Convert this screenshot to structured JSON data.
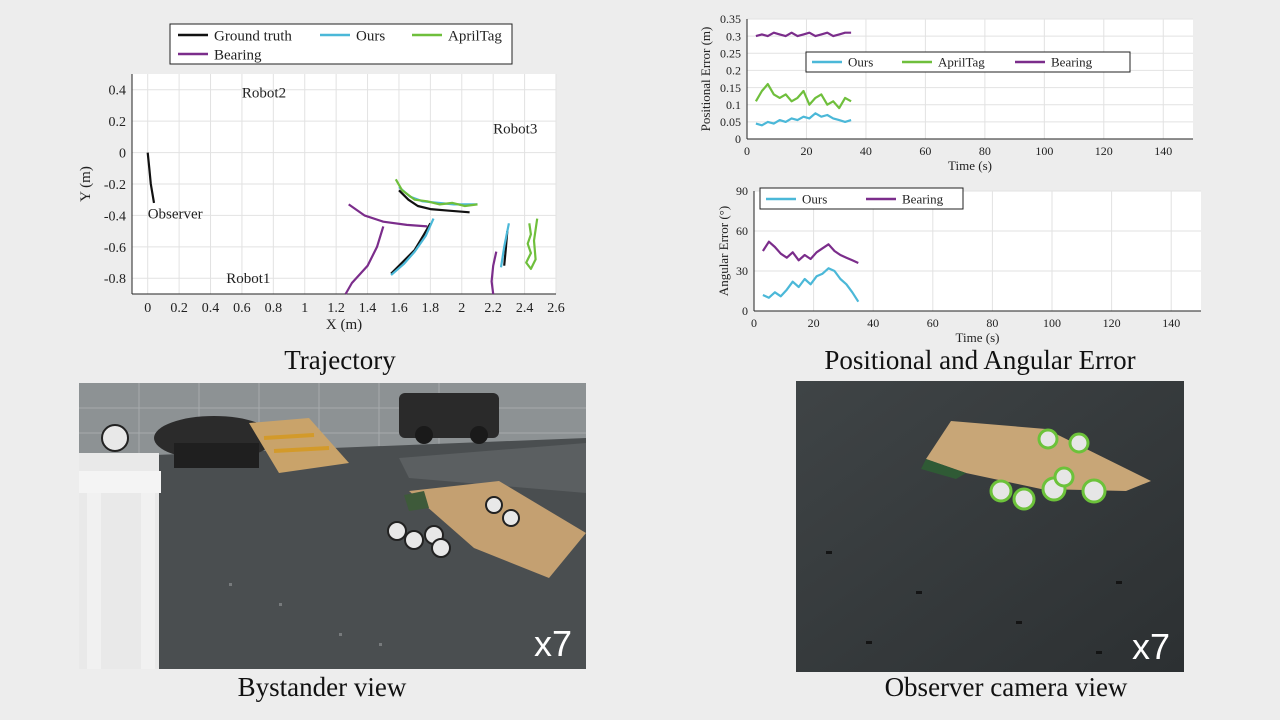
{
  "captions": {
    "trajectory": "Trajectory",
    "errors": "Positional and Angular Error",
    "bystander": "Bystander view",
    "observer": "Observer camera view"
  },
  "videos": {
    "bystander_speed": "x7",
    "observer_speed": "x7"
  },
  "colors": {
    "ground_truth": "#111111",
    "ours": "#4bb8d8",
    "apriltag": "#6fbf3c",
    "bearing": "#7b2d8b"
  },
  "chart_data": [
    {
      "type": "line",
      "xlabel": "X (m)",
      "ylabel": "Y (m)",
      "xlim": [
        -0.1,
        2.6
      ],
      "ylim": [
        -0.9,
        0.5
      ],
      "xticks": [
        0,
        0.2,
        0.4,
        0.6,
        0.8,
        1,
        1.2,
        1.4,
        1.6,
        1.8,
        2,
        2.2,
        2.4,
        2.6
      ],
      "xtick_labels": [
        "0",
        "0.2",
        "0.4",
        "0.6",
        "0.8",
        "1",
        "1.2",
        "1.4",
        "1.6",
        "1.8",
        "2",
        "2.2",
        "2.4",
        "2.6"
      ],
      "yticks": [
        0.4,
        0.2,
        0,
        -0.2,
        -0.4,
        -0.6,
        -0.8
      ],
      "ytick_labels": [
        "0.4",
        "0.2",
        "0",
        "-0.2",
        "-0.4",
        "-0.6",
        "-0.8"
      ],
      "grid": true,
      "legend": "top",
      "annotations": [
        {
          "text": "Robot2",
          "x": 0.6,
          "y": 0.35
        },
        {
          "text": "Robot3",
          "x": 2.2,
          "y": 0.12
        },
        {
          "text": "Observer",
          "x": 0.0,
          "y": -0.42
        },
        {
          "text": "Robot1",
          "x": 0.5,
          "y": -0.83
        }
      ],
      "series": [
        {
          "name": "Ground truth",
          "color_key": "ground_truth",
          "segments": [
            [
              [
                0.0,
                0.0
              ],
              [
                0.01,
                -0.1
              ],
              [
                0.02,
                -0.2
              ],
              [
                0.04,
                -0.32
              ]
            ],
            [
              [
                1.6,
                -0.24
              ],
              [
                1.66,
                -0.3
              ],
              [
                1.72,
                -0.34
              ],
              [
                1.8,
                -0.36
              ],
              [
                1.92,
                -0.37
              ],
              [
                2.05,
                -0.38
              ]
            ],
            [
              [
                1.55,
                -0.77
              ],
              [
                1.62,
                -0.7
              ],
              [
                1.7,
                -0.62
              ],
              [
                1.76,
                -0.52
              ],
              [
                1.8,
                -0.45
              ]
            ],
            [
              [
                2.27,
                -0.72
              ],
              [
                2.28,
                -0.62
              ],
              [
                2.29,
                -0.5
              ]
            ]
          ]
        },
        {
          "name": "Ours",
          "color_key": "ours",
          "segments": [
            [
              [
                1.6,
                -0.22
              ],
              [
                1.67,
                -0.28
              ],
              [
                1.75,
                -0.31
              ],
              [
                1.85,
                -0.32
              ],
              [
                1.95,
                -0.33
              ],
              [
                2.1,
                -0.33
              ]
            ],
            [
              [
                1.55,
                -0.78
              ],
              [
                1.63,
                -0.71
              ],
              [
                1.7,
                -0.63
              ],
              [
                1.77,
                -0.53
              ],
              [
                1.82,
                -0.42
              ]
            ],
            [
              [
                2.25,
                -0.73
              ],
              [
                2.27,
                -0.6
              ],
              [
                2.3,
                -0.45
              ]
            ]
          ]
        },
        {
          "name": "AprilTag",
          "color_key": "apriltag",
          "segments": [
            [
              [
                1.58,
                -0.17
              ],
              [
                1.62,
                -0.24
              ],
              [
                1.7,
                -0.3
              ],
              [
                1.78,
                -0.31
              ],
              [
                1.86,
                -0.33
              ],
              [
                1.94,
                -0.32
              ],
              [
                2.02,
                -0.34
              ],
              [
                2.1,
                -0.33
              ]
            ],
            [
              [
                2.43,
                -0.45
              ],
              [
                2.44,
                -0.52
              ],
              [
                2.42,
                -0.58
              ],
              [
                2.44,
                -0.64
              ],
              [
                2.41,
                -0.7
              ],
              [
                2.44,
                -0.74
              ],
              [
                2.47,
                -0.68
              ],
              [
                2.46,
                -0.56
              ],
              [
                2.48,
                -0.42
              ]
            ]
          ]
        },
        {
          "name": "Bearing",
          "color_key": "bearing",
          "segments": [
            [
              [
                1.28,
                -0.33
              ],
              [
                1.38,
                -0.4
              ],
              [
                1.5,
                -0.44
              ],
              [
                1.65,
                -0.46
              ],
              [
                1.78,
                -0.47
              ]
            ],
            [
              [
                1.5,
                -0.47
              ],
              [
                1.46,
                -0.6
              ],
              [
                1.4,
                -0.72
              ],
              [
                1.3,
                -0.83
              ],
              [
                1.26,
                -0.9
              ]
            ],
            [
              [
                2.22,
                -0.63
              ],
              [
                2.2,
                -0.72
              ],
              [
                2.19,
                -0.82
              ],
              [
                2.2,
                -0.9
              ]
            ]
          ]
        }
      ]
    },
    {
      "type": "line",
      "xlabel": "Time (s)",
      "ylabel": "Positional Error (m)",
      "xlim": [
        0,
        150
      ],
      "ylim": [
        0,
        0.35
      ],
      "xticks": [
        0,
        20,
        40,
        60,
        80,
        100,
        120,
        140
      ],
      "xtick_labels": [
        "0",
        "20",
        "40",
        "60",
        "80",
        "100",
        "120",
        "140"
      ],
      "yticks": [
        0,
        0.05,
        0.1,
        0.15,
        0.2,
        0.25,
        0.3,
        0.35
      ],
      "ytick_labels": [
        "0",
        "0.05",
        "0.1",
        "0.15",
        "0.2",
        "0.25",
        "0.3",
        "0.35"
      ],
      "grid": true,
      "legend": "top-center",
      "x": [
        3,
        5,
        7,
        9,
        11,
        13,
        15,
        17,
        19,
        21,
        23,
        25,
        27,
        29,
        31,
        33,
        35
      ],
      "series": [
        {
          "name": "Ours",
          "color_key": "ours",
          "values": [
            0.045,
            0.04,
            0.05,
            0.045,
            0.055,
            0.05,
            0.06,
            0.055,
            0.065,
            0.06,
            0.075,
            0.065,
            0.07,
            0.06,
            0.055,
            0.05,
            0.055
          ]
        },
        {
          "name": "AprilTag",
          "color_key": "apriltag",
          "values": [
            0.11,
            0.14,
            0.16,
            0.13,
            0.12,
            0.13,
            0.11,
            0.12,
            0.14,
            0.1,
            0.12,
            0.13,
            0.1,
            0.11,
            0.09,
            0.12,
            0.11
          ]
        },
        {
          "name": "Bearing",
          "color_key": "bearing",
          "values": [
            0.3,
            0.305,
            0.3,
            0.31,
            0.305,
            0.3,
            0.31,
            0.3,
            0.305,
            0.31,
            0.3,
            0.305,
            0.31,
            0.3,
            0.305,
            0.31,
            0.31
          ]
        }
      ]
    },
    {
      "type": "line",
      "xlabel": "Time (s)",
      "ylabel": "Angular Error (°)",
      "xlim": [
        0,
        150
      ],
      "ylim": [
        0,
        90
      ],
      "xticks": [
        0,
        20,
        40,
        60,
        80,
        100,
        120,
        140
      ],
      "xtick_labels": [
        "0",
        "20",
        "40",
        "60",
        "80",
        "100",
        "120",
        "140"
      ],
      "yticks": [
        0,
        30,
        60,
        90
      ],
      "ytick_labels": [
        "0",
        "30",
        "60",
        "90"
      ],
      "grid": true,
      "legend": "top-left",
      "x": [
        3,
        5,
        7,
        9,
        11,
        13,
        15,
        17,
        19,
        21,
        23,
        25,
        27,
        29,
        31,
        33,
        35
      ],
      "series": [
        {
          "name": "Ours",
          "color_key": "ours",
          "values": [
            12,
            10,
            14,
            11,
            16,
            22,
            18,
            24,
            20,
            26,
            28,
            32,
            30,
            24,
            20,
            14,
            7
          ]
        },
        {
          "name": "Bearing",
          "color_key": "bearing",
          "values": [
            45,
            52,
            48,
            43,
            40,
            44,
            38,
            42,
            39,
            44,
            47,
            50,
            45,
            42,
            40,
            38,
            36
          ]
        }
      ]
    }
  ]
}
